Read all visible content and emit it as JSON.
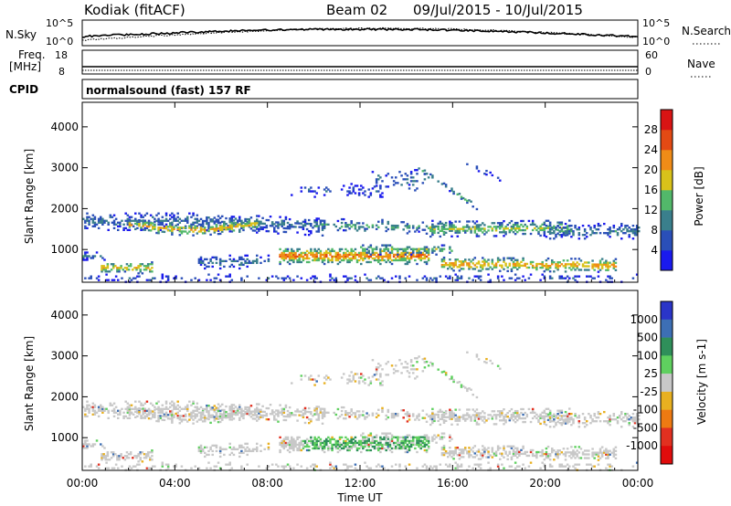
{
  "header": {
    "station": "Kodiak (fitACF)",
    "beam": "Beam 02",
    "dates": "09/Jul/2015 - 10/Jul/2015"
  },
  "top_panels": {
    "nsky_label": "N.Sky",
    "nsearch_label": "N.Search",
    "nsky_ticks": [
      "10^5",
      "10^0"
    ],
    "freq_label_1": "Freq.",
    "freq_label_2": "[MHz]",
    "freq_ticks": [
      "18",
      "8"
    ],
    "nave_label": "Nave",
    "nave_ticks": [
      "60",
      "0"
    ],
    "cpid_label": "CPID",
    "cpid_value": "normalsound (fast) 157 RF"
  },
  "chart_data": [
    {
      "type": "heatmap",
      "name": "power",
      "ylabel": "Slant Range [km]",
      "xlabel": "",
      "x_ticks": [
        "00:00",
        "04:00",
        "08:00",
        "12:00",
        "16:00",
        "20:00",
        "00:00"
      ],
      "y_ticks": [
        1000,
        2000,
        3000,
        4000
      ],
      "xlim_hours": [
        0,
        24
      ],
      "ylim_km": [
        200,
        4600
      ],
      "colorbar_label": "Power [dB]",
      "colorbar_ticks": [
        4,
        8,
        12,
        16,
        20,
        24,
        28
      ],
      "colorbar_colors": [
        "#1a1aee",
        "#2a4fb8",
        "#3a7f8c",
        "#52b86a",
        "#d9c21a",
        "#f08c17",
        "#e34a14",
        "#d91414"
      ]
    },
    {
      "type": "heatmap",
      "name": "velocity",
      "ylabel": "Slant Range [km]",
      "xlabel": "Time UT",
      "x_ticks": [
        "00:00",
        "04:00",
        "08:00",
        "12:00",
        "16:00",
        "20:00",
        "00:00"
      ],
      "y_ticks": [
        1000,
        2000,
        3000,
        4000
      ],
      "xlim_hours": [
        0,
        24
      ],
      "ylim_km": [
        200,
        4600
      ],
      "colorbar_label": "Velocity [m s-1]",
      "colorbar_ticks": [
        "1000",
        "500",
        "100",
        "25",
        "-25",
        "-100",
        "-500",
        "-1000"
      ],
      "colorbar_colors": [
        "#2a35c8",
        "#3d6fb5",
        "#2f8f5a",
        "#5fd05f",
        "#c8c8c8",
        "#e8b020",
        "#ee7a12",
        "#e23020",
        "#e00c0c"
      ]
    }
  ]
}
